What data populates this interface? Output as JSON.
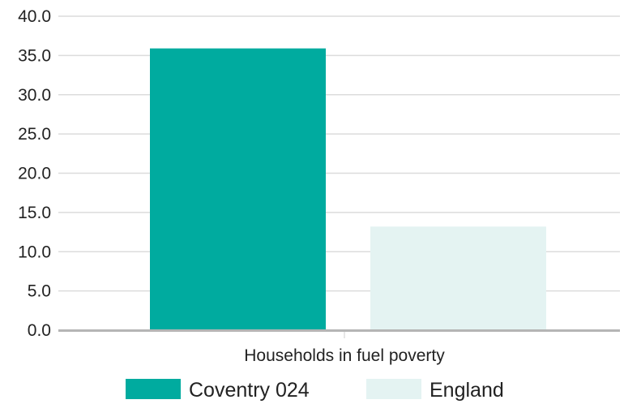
{
  "chart_data": {
    "type": "bar",
    "categories": [
      "Households in fuel poverty"
    ],
    "series": [
      {
        "name": "Coventry 024",
        "values": [
          35.9
        ],
        "color": "#00ab9f"
      },
      {
        "name": "England",
        "values": [
          13.2
        ],
        "color": "#e4f3f2"
      }
    ],
    "ylim": [
      0,
      40
    ],
    "yticks": [
      "0.0",
      "5.0",
      "10.0",
      "15.0",
      "20.0",
      "25.0",
      "30.0",
      "35.0",
      "40.0"
    ],
    "grid": true,
    "legend_position": "bottom"
  }
}
